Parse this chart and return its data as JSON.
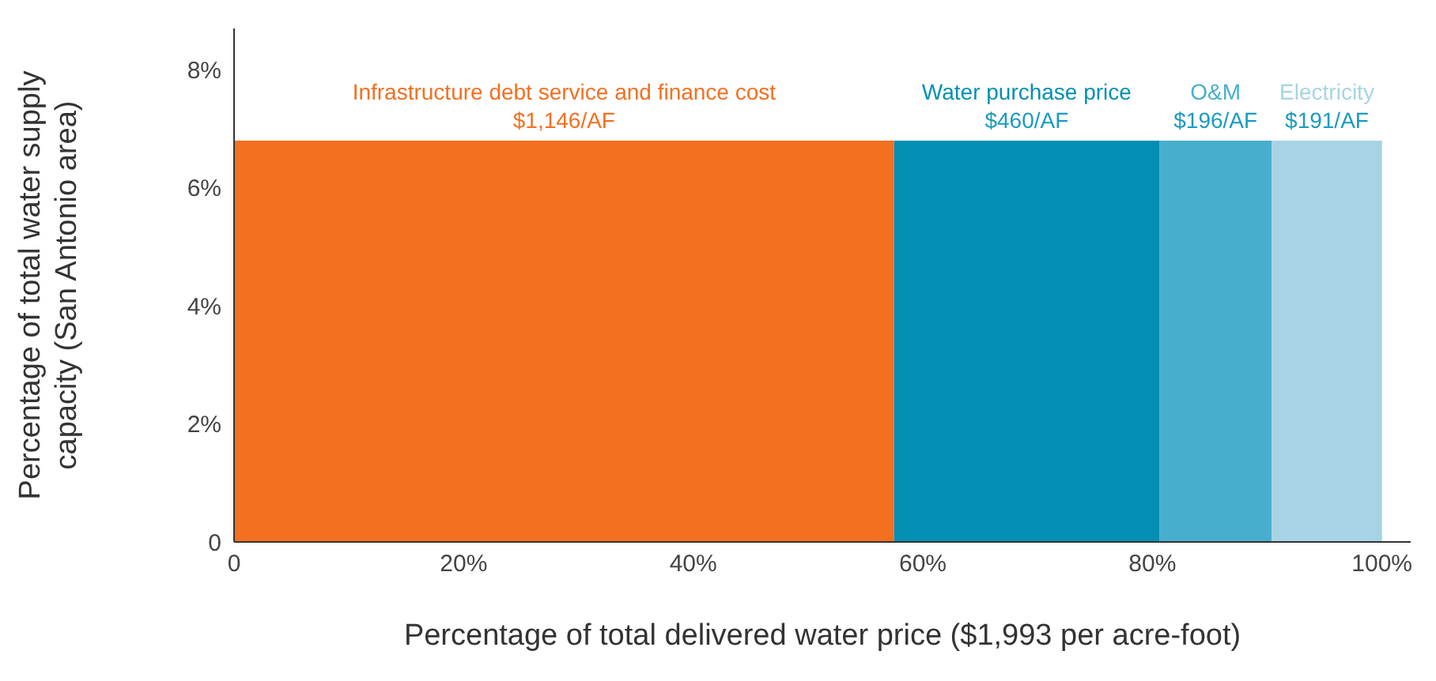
{
  "chart_data": {
    "type": "area",
    "xlabel": "Percentage of total delivered water price ($1,993 per acre-foot)",
    "ylabel": "Percentage of total water supply capacity (San Antonio area)",
    "xlim": [
      0,
      102.5
    ],
    "xticks": [
      {
        "value": 0,
        "label": "0"
      },
      {
        "value": 20,
        "label": "20%"
      },
      {
        "value": 40,
        "label": "40%"
      },
      {
        "value": 60,
        "label": "60%"
      },
      {
        "value": 80,
        "label": "80%"
      },
      {
        "value": 100,
        "label": "100%"
      }
    ],
    "ylim": [
      0,
      8.7
    ],
    "yticks": [
      {
        "value": 0,
        "label": "0"
      },
      {
        "value": 2,
        "label": "2%"
      },
      {
        "value": 4,
        "label": "4%"
      },
      {
        "value": 6,
        "label": "6%"
      },
      {
        "value": 8,
        "label": "8%"
      }
    ],
    "series": [
      {
        "name": "Infrastructure debt service and finance cost",
        "color": "#f37021",
        "x": [
          0,
          57.5
        ],
        "values": [
          6.8,
          6.8
        ]
      },
      {
        "name": "Water purchase price",
        "color": "#038fb3",
        "x": [
          57.5,
          80.6
        ],
        "values": [
          6.8,
          6.8
        ]
      },
      {
        "name": "O&M",
        "color": "#47afcd",
        "x": [
          80.6,
          90.4
        ],
        "values": [
          6.8,
          6.8
        ]
      },
      {
        "name": "Electricity",
        "color": "#a6d4e4",
        "x": [
          90.4,
          100
        ],
        "values": [
          6.8,
          6.8
        ]
      }
    ],
    "annotations": [
      {
        "text": "$1,146/AF",
        "x": 28.75,
        "y": 6.8
      },
      {
        "text": "$460/AF",
        "x": 69.05,
        "y": 6.8
      },
      {
        "text": "$196/AF",
        "x": 85.5,
        "y": 6.8
      },
      {
        "text": "$191/AF",
        "x": 95.2,
        "y": 6.8
      }
    ],
    "legend": false,
    "grid": false
  }
}
